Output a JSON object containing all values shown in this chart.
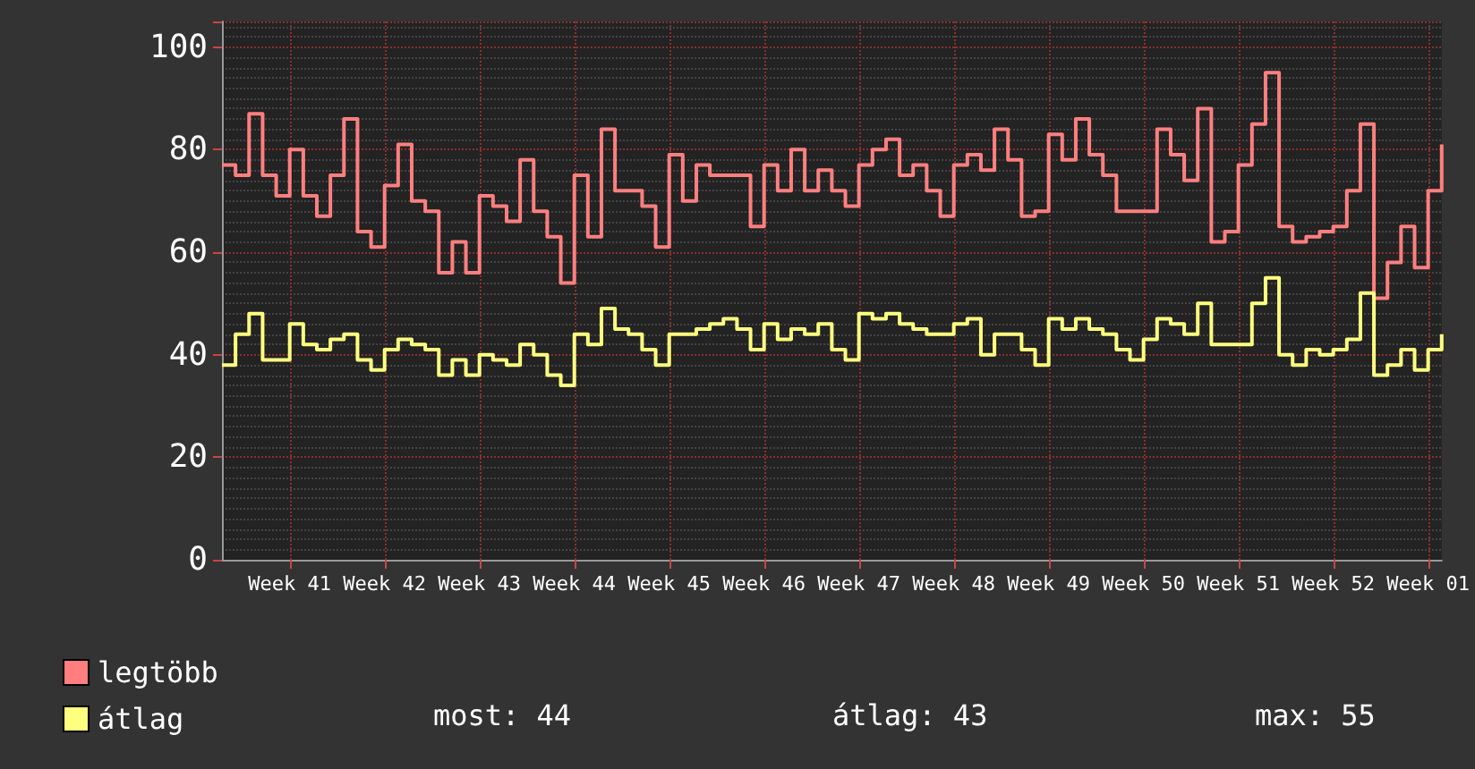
{
  "chart_data": {
    "type": "step",
    "categories": [
      null,
      null,
      null,
      null,
      null,
      "Week 41",
      null,
      null,
      null,
      null,
      null,
      null,
      "Week 42",
      null,
      null,
      null,
      null,
      null,
      null,
      "Week 43",
      null,
      null,
      null,
      null,
      null,
      null,
      "Week 44",
      null,
      null,
      null,
      null,
      null,
      null,
      "Week 45",
      null,
      null,
      null,
      null,
      null,
      null,
      "Week 46",
      null,
      null,
      null,
      null,
      null,
      null,
      "Week 47",
      null,
      null,
      null,
      null,
      null,
      null,
      "Week 48",
      null,
      null,
      null,
      null,
      null,
      null,
      "Week 49",
      null,
      null,
      null,
      null,
      null,
      null,
      "Week 50",
      null,
      null,
      null,
      null,
      null,
      null,
      "Week 51",
      null,
      null,
      null,
      null,
      null,
      null,
      "Week 52",
      null,
      null,
      null,
      null,
      null,
      null,
      "Week 01",
      null
    ],
    "series": [
      {
        "name": "legtöbb",
        "color": "#ff7f7f",
        "values": [
          77,
          75,
          87,
          75,
          71,
          80,
          71,
          67,
          75,
          86,
          64,
          61,
          73,
          81,
          70,
          68,
          56,
          62,
          56,
          71,
          69,
          66,
          78,
          68,
          63,
          54,
          75,
          63,
          84,
          72,
          72,
          69,
          61,
          79,
          70,
          77,
          75,
          75,
          75,
          65,
          77,
          72,
          80,
          72,
          76,
          72,
          69,
          77,
          80,
          82,
          75,
          77,
          72,
          67,
          77,
          79,
          76,
          84,
          78,
          67,
          68,
          83,
          78,
          86,
          79,
          75,
          68,
          68,
          68,
          84,
          79,
          74,
          88,
          62,
          64,
          77,
          85,
          95,
          65,
          62,
          63,
          64,
          65,
          72,
          85,
          51,
          58,
          65,
          57,
          72,
          81
        ]
      },
      {
        "name": "átlag",
        "color": "#ffff7f",
        "values": [
          38,
          44,
          48,
          39,
          39,
          46,
          42,
          41,
          43,
          44,
          39,
          37,
          41,
          43,
          42,
          41,
          36,
          39,
          36,
          40,
          39,
          38,
          42,
          40,
          36,
          34,
          44,
          42,
          49,
          45,
          44,
          41,
          38,
          44,
          44,
          45,
          46,
          47,
          45,
          41,
          46,
          43,
          45,
          44,
          46,
          41,
          39,
          48,
          47,
          48,
          46,
          45,
          44,
          44,
          46,
          47,
          40,
          44,
          44,
          41,
          38,
          47,
          45,
          47,
          45,
          44,
          41,
          39,
          43,
          47,
          46,
          44,
          50,
          42,
          42,
          42,
          50,
          55,
          40,
          38,
          41,
          40,
          41,
          43,
          52,
          36,
          38,
          41,
          37,
          41,
          44
        ]
      }
    ],
    "ylim": [
      0,
      105
    ],
    "yticks": [
      0,
      20,
      40,
      60,
      80,
      100
    ],
    "grid": true,
    "legend": "bottom",
    "annotations": [
      "most: 44",
      "átlag: 43",
      "max: 55"
    ]
  }
}
